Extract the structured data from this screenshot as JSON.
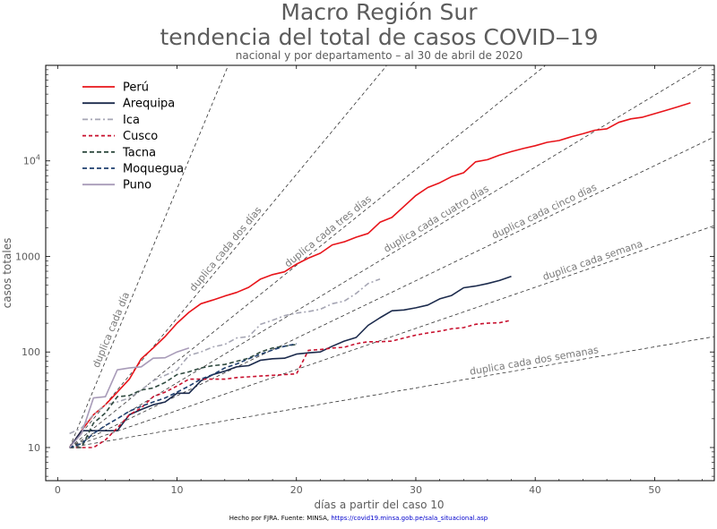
{
  "chart_data": {
    "type": "line",
    "title": "Macro Región Sur",
    "subtitle": "tendencia del total de casos COVID‒19",
    "subsubtitle": "nacional y por departamento – al 30 de abril de 2020",
    "xlabel": "días a partir del caso 10",
    "ylabel": "casos totales",
    "footer_prefix": "Hecho por FJRA. Fuente: MINSA, ",
    "footer_link": "https://covid19.minsa.gob.pe/sala_situacional.asp",
    "x_scale": "linear",
    "y_scale": "log",
    "xlim": [
      -1,
      55
    ],
    "ylim": [
      4.5,
      100000
    ],
    "x_ticks": [
      0,
      10,
      20,
      30,
      40,
      50
    ],
    "y_ticks": [
      {
        "value": 10,
        "label": "10"
      },
      {
        "value": 100,
        "label": "100"
      },
      {
        "value": 1000,
        "label": "1000"
      },
      {
        "value": 10000,
        "label": "10^4"
      }
    ],
    "grid": false,
    "legend_position": "top-left",
    "reference_lines": [
      {
        "label": "duplica cada día",
        "doubling_days": 1
      },
      {
        "label": "duplica cada dos días",
        "doubling_days": 2
      },
      {
        "label": "duplica cada tres días",
        "doubling_days": 3
      },
      {
        "label": "duplica cada cuatro días",
        "doubling_days": 4
      },
      {
        "label": "duplica cada cinco días",
        "doubling_days": 5
      },
      {
        "label": "duplica cada semana",
        "doubling_days": 7
      },
      {
        "label": "duplica cada dos semanas",
        "doubling_days": 14
      }
    ],
    "series": [
      {
        "name": "Perú",
        "color": "#e8141a",
        "dash": "solid",
        "x": [
          1,
          2,
          3,
          4,
          5,
          6,
          7,
          8,
          9,
          10,
          11,
          12,
          13,
          14,
          15,
          16,
          17,
          18,
          19,
          20,
          21,
          22,
          23,
          24,
          25,
          26,
          27,
          28,
          29,
          30,
          31,
          32,
          33,
          34,
          35,
          36,
          37,
          38,
          39,
          40,
          41,
          42,
          43,
          44,
          45,
          46,
          47,
          48,
          49,
          50,
          51,
          52,
          53
        ],
        "y": [
          10,
          15,
          22,
          28,
          38,
          52,
          85,
          110,
          145,
          200,
          260,
          320,
          350,
          385,
          420,
          475,
          580,
          645,
          690,
          830,
          960,
          1080,
          1320,
          1420,
          1590,
          1740,
          2280,
          2560,
          3330,
          4340,
          5260,
          5900,
          6850,
          7520,
          9780,
          10300,
          11470,
          12490,
          13490,
          14420,
          15630,
          16330,
          17840,
          19250,
          20910,
          21650,
          25330,
          27520,
          28700,
          31190,
          33930,
          36980,
          40460
        ]
      },
      {
        "name": "Arequipa",
        "color": "#1b2a4c",
        "dash": "solid",
        "x": [
          1,
          2,
          3,
          4,
          5,
          6,
          7,
          8,
          9,
          10,
          11,
          12,
          13,
          14,
          15,
          16,
          17,
          18,
          19,
          20,
          21,
          22,
          23,
          24,
          25,
          26,
          27,
          28,
          29,
          30,
          31,
          32,
          33,
          34,
          35,
          36,
          37,
          38
        ],
        "y": [
          10,
          15,
          15,
          15,
          15,
          22,
          25,
          28,
          30,
          37,
          37,
          50,
          58,
          63,
          70,
          72,
          82,
          85,
          86,
          95,
          98,
          100,
          115,
          130,
          142,
          190,
          228,
          270,
          275,
          290,
          310,
          360,
          390,
          470,
          490,
          520,
          560,
          620
        ]
      },
      {
        "name": "Ica",
        "color": "#a6a6b4",
        "dash": "6 3 2 3",
        "x": [
          1,
          2,
          3,
          4,
          5,
          6,
          7,
          8,
          9,
          10,
          11,
          12,
          13,
          14,
          15,
          16,
          17,
          18,
          19,
          20,
          21,
          22,
          23,
          24,
          25,
          26,
          27
        ],
        "y": [
          14,
          16,
          22,
          28,
          30,
          33,
          40,
          50,
          57,
          65,
          92,
          100,
          113,
          120,
          140,
          145,
          195,
          215,
          240,
          255,
          265,
          280,
          320,
          340,
          410,
          520,
          580
        ]
      },
      {
        "name": "Cusco",
        "color": "#c8102e",
        "dash": "4 3",
        "x": [
          1,
          2,
          3,
          4,
          5,
          6,
          7,
          8,
          9,
          10,
          11,
          12,
          13,
          14,
          15,
          16,
          17,
          18,
          19,
          20,
          21,
          22,
          23,
          24,
          25,
          26,
          27,
          28,
          29,
          30,
          31,
          32,
          33,
          34,
          35,
          36,
          37,
          38
        ],
        "y": [
          10,
          10,
          10,
          12,
          16,
          22,
          26,
          34,
          38,
          44,
          52,
          52,
          52,
          52,
          54,
          55,
          56,
          57,
          58,
          59,
          104,
          106,
          110,
          112,
          122,
          128,
          128,
          130,
          140,
          150,
          158,
          165,
          175,
          180,
          195,
          200,
          202,
          215
        ]
      },
      {
        "name": "Tacna",
        "color": "#2f4a3f",
        "dash": "5 3",
        "x": [
          1,
          2,
          3,
          4,
          5,
          6,
          7,
          8,
          9,
          10,
          11,
          12,
          13,
          14,
          15,
          16,
          17,
          18,
          19,
          20
        ],
        "y": [
          10,
          10,
          18,
          23,
          34,
          35,
          40,
          42,
          48,
          58,
          62,
          68,
          72,
          74,
          80,
          86,
          100,
          110,
          115,
          120
        ]
      },
      {
        "name": "Moquegua",
        "color": "#1f3f6e",
        "dash": "5 3",
        "x": [
          1,
          2,
          3,
          4,
          5,
          6,
          7,
          8,
          9,
          10,
          11,
          12,
          13,
          14,
          15,
          16,
          17,
          18,
          19,
          20
        ],
        "y": [
          10,
          11,
          14,
          17,
          20,
          24,
          27,
          30,
          33,
          38,
          44,
          52,
          58,
          68,
          75,
          85,
          95,
          105,
          115,
          122
        ]
      },
      {
        "name": "Puno",
        "color": "#a89bb8",
        "dash": "solid",
        "x": [
          1,
          2,
          3,
          4,
          5,
          6,
          7,
          8,
          9,
          10,
          11
        ],
        "y": [
          10,
          14,
          33,
          34,
          65,
          68,
          70,
          86,
          87,
          100,
          110
        ]
      }
    ]
  }
}
